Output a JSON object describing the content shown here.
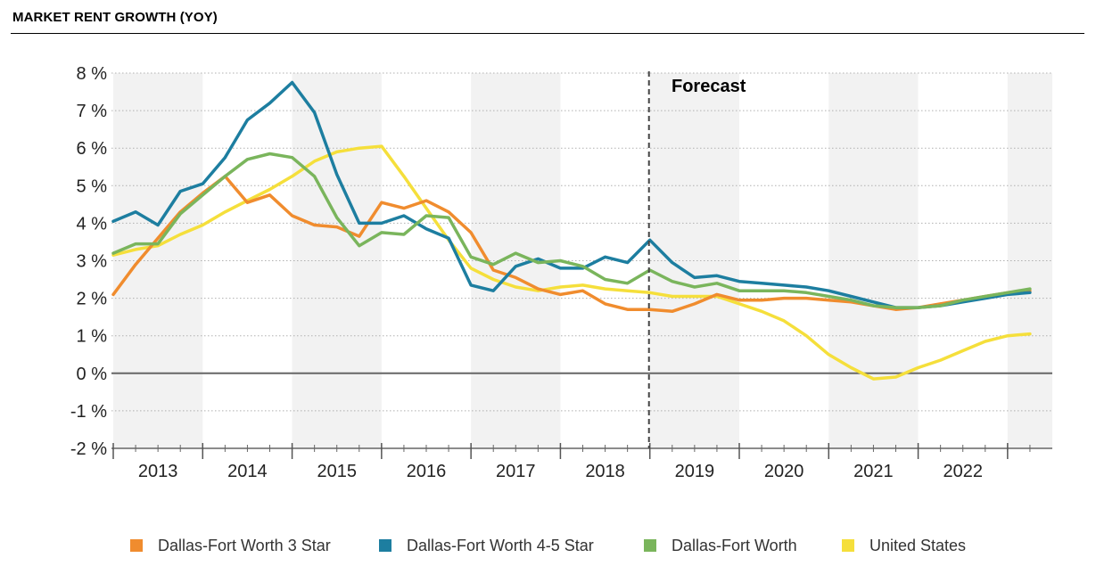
{
  "header": {
    "title": "MARKET RENT GROWTH (YOY)"
  },
  "chart_data": {
    "type": "line",
    "title": "MARKET RENT GROWTH (YOY)",
    "xlabel": "",
    "ylabel": "",
    "x_start": 2012.5,
    "x_end": 2022.875,
    "x_step": 0.25,
    "ylim": [
      -2,
      8
    ],
    "y_ticks": [
      8,
      7,
      6,
      5,
      4,
      3,
      2,
      1,
      0,
      -1,
      -2
    ],
    "y_tick_labels": [
      "8 %",
      "7 %",
      "6 %",
      "5 %",
      "4 %",
      "3 %",
      "2 %",
      "1 %",
      "0 %",
      "-1 %",
      "-2 %"
    ],
    "x_tick_labels": [
      "2013",
      "2014",
      "2015",
      "2016",
      "2017",
      "2018",
      "2019",
      "2020",
      "2021",
      "2022"
    ],
    "forecast_start": 2018.5,
    "forecast_label": "Forecast",
    "grid": true,
    "legend_position": "bottom",
    "series": [
      {
        "name": "Dallas-Fort Worth 3 Star",
        "color": "#F08C2E",
        "values": [
          2.1,
          2.9,
          3.6,
          4.3,
          4.8,
          5.25,
          4.55,
          4.75,
          4.2,
          3.95,
          3.9,
          3.65,
          4.55,
          4.4,
          4.6,
          4.3,
          3.75,
          2.75,
          2.55,
          2.25,
          2.1,
          2.2,
          1.85,
          1.7,
          1.7,
          1.65,
          1.85,
          2.1,
          1.95,
          1.95,
          2.0,
          2.0,
          1.95,
          1.9,
          1.8,
          1.7,
          1.75,
          1.85,
          1.95,
          2.05,
          2.15,
          2.2
        ]
      },
      {
        "name": "Dallas-Fort Worth 4-5 Star",
        "color": "#1D7EA0",
        "values": [
          4.05,
          4.3,
          3.95,
          4.85,
          5.05,
          5.75,
          6.75,
          7.2,
          7.75,
          6.95,
          5.3,
          4.0,
          4.0,
          4.2,
          3.85,
          3.6,
          2.35,
          2.2,
          2.85,
          3.05,
          2.8,
          2.8,
          3.1,
          2.95,
          3.55,
          2.95,
          2.55,
          2.6,
          2.45,
          2.4,
          2.35,
          2.3,
          2.2,
          2.05,
          1.9,
          1.75,
          1.75,
          1.8,
          1.9,
          2.0,
          2.1,
          2.15
        ]
      },
      {
        "name": "Dallas-Fort Worth",
        "color": "#7AB55C",
        "values": [
          3.2,
          3.45,
          3.45,
          4.25,
          4.75,
          5.25,
          5.7,
          5.85,
          5.75,
          5.25,
          4.15,
          3.4,
          3.75,
          3.7,
          4.2,
          4.15,
          3.1,
          2.9,
          3.2,
          2.95,
          3.0,
          2.85,
          2.5,
          2.4,
          2.75,
          2.45,
          2.3,
          2.4,
          2.2,
          2.2,
          2.2,
          2.15,
          2.05,
          1.95,
          1.8,
          1.75,
          1.75,
          1.8,
          1.95,
          2.05,
          2.15,
          2.25
        ]
      },
      {
        "name": "United States",
        "color": "#F5DF3B",
        "values": [
          3.15,
          3.3,
          3.4,
          3.7,
          3.95,
          4.3,
          4.6,
          4.9,
          5.25,
          5.65,
          5.9,
          6.0,
          6.05,
          5.25,
          4.4,
          3.55,
          2.8,
          2.5,
          2.3,
          2.2,
          2.3,
          2.35,
          2.25,
          2.2,
          2.15,
          2.05,
          2.05,
          2.05,
          1.85,
          1.65,
          1.4,
          1.0,
          0.5,
          0.15,
          -0.15,
          -0.1,
          0.15,
          0.35,
          0.6,
          0.85,
          1.0,
          1.05
        ]
      }
    ]
  }
}
